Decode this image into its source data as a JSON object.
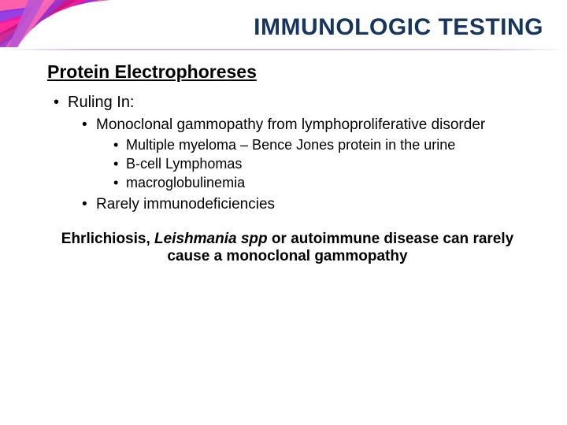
{
  "title": {
    "text": "IMMUNOLOGIC TESTING",
    "color": "#17365d",
    "fontsize": 30
  },
  "subtitle": {
    "text": "Protein Electrophoreses",
    "fontsize": 23,
    "color": "#000000"
  },
  "body_fontsize_lvl1": 20,
  "body_fontsize_lvl2": 19,
  "body_fontsize_lvl3": 18,
  "body_color": "#000000",
  "bullets": {
    "ruling_in": "Ruling In:",
    "mono": "Monoclonal gammopathy from lymphoproliferative disorder",
    "mm": "Multiple myeloma – Bence Jones protein in the urine",
    "bcell": "B-cell Lymphomas",
    "macro": "macroglobulinemia",
    "rarely": "Rarely immunodeficiencies"
  },
  "note": {
    "part1": "Ehrlichiosis, ",
    "part2_italic": "Leishmania spp",
    "part3": " or autoimmune disease can rarely cause a monoclonal gammopathy",
    "fontsize": 19,
    "color": "#000000"
  },
  "decor": {
    "stripe_colors": [
      "#ff4fa3",
      "#8a2be2",
      "#ff1493",
      "#c71585",
      "#9932cc",
      "#ff69b4",
      "#ba55d3"
    ]
  }
}
